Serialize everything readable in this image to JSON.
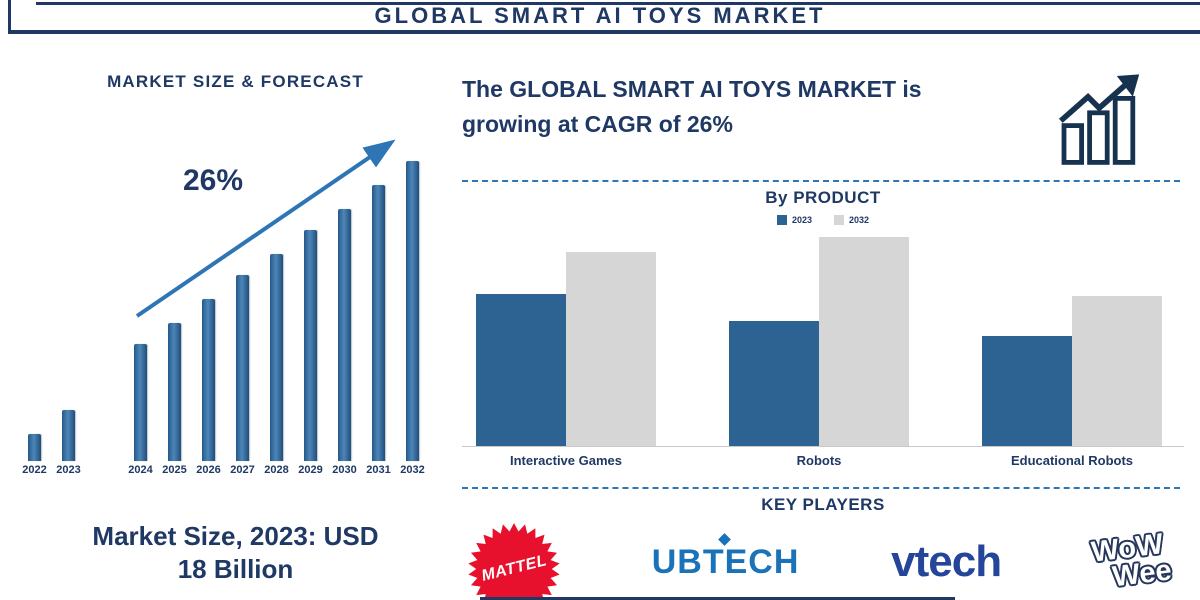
{
  "header": {
    "title": "GLOBAL SMART AI TOYS MARKET"
  },
  "left": {
    "market_size_line1": "Market Size, 2023: USD",
    "market_size_line2": "18 Billion"
  },
  "right": {
    "headline_line1": "The GLOBAL SMART AI TOYS MARKET is",
    "headline_line2": "growing at CAGR of 26%",
    "key_players_title": "KEY PLAYERS",
    "key_players": [
      {
        "name": "MATTEL",
        "color": "#e8112d"
      },
      {
        "name": "UBTECH",
        "color": "#1a72b8"
      },
      {
        "name": "vtech",
        "color": "#24459a"
      },
      {
        "name": "WowWee",
        "line1": "WoW",
        "line2": "Wee",
        "color": "#26375e"
      }
    ]
  },
  "colors": {
    "navy": "#1f3864",
    "accent_blue": "#2e75b6",
    "bar_blue": "#2d6393",
    "bar_gray": "#d6d6d6"
  },
  "chart_data": [
    {
      "type": "bar",
      "title": "MARKET SIZE & FORECAST",
      "categories": [
        "2022",
        "2023",
        "2024",
        "2025",
        "2026",
        "2027",
        "2028",
        "2029",
        "2030",
        "2031",
        "2032"
      ],
      "values": [
        9,
        17,
        39,
        46,
        54,
        62,
        69,
        77,
        84,
        92,
        100
      ],
      "unit": "relative height index (2032 bar = 100); y-axis unlabeled in source",
      "annotation": "26%",
      "note": "stylized forecast bars; stated Market Size 2023 = USD 18 Billion, CAGR 26%",
      "gap_after_index": 1,
      "legend_position": "none",
      "grid": false
    },
    {
      "type": "bar",
      "title": "By PRODUCT",
      "categories": [
        "Interactive Games",
        "Robots",
        "Educational Robots"
      ],
      "series": [
        {
          "name": "2023",
          "color": "#2d6393",
          "values": [
            73,
            60,
            53
          ]
        },
        {
          "name": "2032",
          "color": "#d6d6d6",
          "values": [
            93,
            100,
            72
          ]
        }
      ],
      "unit": "relative height index (tallest bar = 100); y-axis unlabeled in source",
      "ylim": [
        0,
        100
      ],
      "legend_position": "top",
      "grid": false
    }
  ]
}
